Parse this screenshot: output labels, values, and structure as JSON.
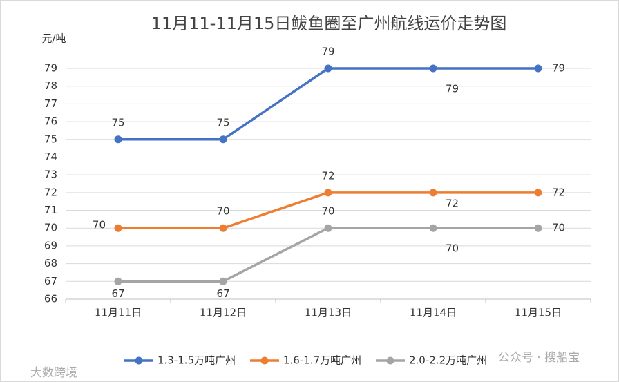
{
  "chart_data": {
    "type": "line",
    "title": "11月11-11月15日鲅鱼圈至广州航线运价走势图",
    "y_label": "元/吨",
    "categories": [
      "11月11日",
      "11月12日",
      "11月13日",
      "11月14日",
      "11月15日"
    ],
    "series": [
      {
        "name": "1.3-1.5万吨广州",
        "color": "#4472c4",
        "values": [
          75,
          75,
          79,
          79,
          79
        ]
      },
      {
        "name": "1.6-1.7万吨广州",
        "color": "#ed7d31",
        "values": [
          70,
          70,
          72,
          72,
          72
        ]
      },
      {
        "name": "2.0-2.2万吨广州",
        "color": "#a5a5a5",
        "values": [
          67,
          67,
          70,
          70,
          70
        ]
      }
    ],
    "ylim": [
      66,
      79
    ],
    "yticks": [
      66,
      67,
      68,
      69,
      70,
      71,
      72,
      73,
      74,
      75,
      76,
      77,
      78,
      79
    ],
    "grid": true,
    "legend": "bottom",
    "watermarks": [
      "公众号 · 搜船宝",
      "大数跨境"
    ]
  }
}
